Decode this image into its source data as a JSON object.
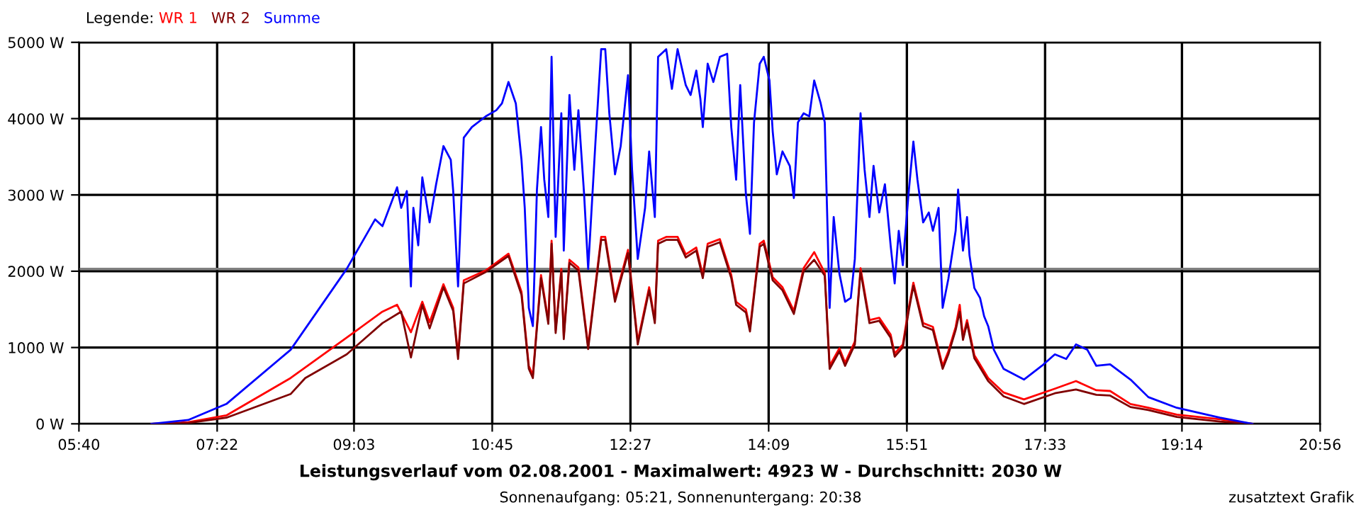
{
  "chart_data": {
    "type": "line",
    "title": "Leistungsverlauf vom 02.08.2001 - Maximalwert: 4923 W - Durchschnitt: 2030 W",
    "subtitle": "Sonnenaufgang: 05:21, Sonnenuntergang: 20:38",
    "legend_title": "Legende:",
    "legend": "top left",
    "grid": true,
    "marker": "none",
    "line_style": "solid",
    "annotations": [
      "zusatztext Grafik"
    ],
    "xlim": [
      5.6667,
      20.9333
    ],
    "xticks": [
      {
        "value": 5.6667,
        "label": "05:40"
      },
      {
        "value": 7.3667,
        "label": "07:22"
      },
      {
        "value": 9.05,
        "label": "09:03"
      },
      {
        "value": 10.75,
        "label": "10:45"
      },
      {
        "value": 12.45,
        "label": "12:27"
      },
      {
        "value": 14.15,
        "label": "14:09"
      },
      {
        "value": 15.85,
        "label": "15:51"
      },
      {
        "value": 17.55,
        "label": "17:33"
      },
      {
        "value": 19.2333,
        "label": "19:14"
      },
      {
        "value": 20.9333,
        "label": "20:56"
      }
    ],
    "ylim": [
      0,
      5000
    ],
    "yticks": [
      {
        "value": 0,
        "label": "0 W"
      },
      {
        "value": 1000,
        "label": "1000 W"
      },
      {
        "value": 2000,
        "label": "2000 W"
      },
      {
        "value": 3000,
        "label": "3000 W"
      },
      {
        "value": 4000,
        "label": "4000 W"
      },
      {
        "value": 5000,
        "label": "5000 W"
      }
    ],
    "ref_lines": [
      {
        "axis": "y",
        "value": 2030,
        "label": null,
        "color": "#808080"
      }
    ],
    "series": [
      {
        "name": "WR 1",
        "color": "#ff0000",
        "x": [
          6.56,
          7.01,
          7.48,
          8.27,
          8.96,
          9.4,
          9.58,
          9.75,
          9.89,
          9.98,
          10.15,
          10.27,
          10.33,
          10.4,
          10.67,
          10.95,
          11.11,
          11.2,
          11.25,
          11.35,
          11.44,
          11.48,
          11.53,
          11.6,
          11.63,
          11.7,
          11.81,
          11.93,
          12.09,
          12.14,
          12.26,
          12.42,
          12.54,
          12.68,
          12.75,
          12.79,
          12.89,
          13.03,
          13.13,
          13.26,
          13.34,
          13.4,
          13.55,
          13.69,
          13.75,
          13.87,
          13.92,
          14.04,
          14.09,
          14.2,
          14.32,
          14.46,
          14.58,
          14.71,
          14.84,
          14.9,
          15.02,
          15.09,
          15.21,
          15.28,
          15.39,
          15.51,
          15.65,
          15.7,
          15.8,
          15.87,
          15.93,
          16.05,
          16.17,
          16.29,
          16.36,
          16.45,
          16.5,
          16.54,
          16.59,
          16.68,
          16.85,
          17.04,
          17.29,
          17.67,
          17.93,
          18.18,
          18.35,
          18.6,
          18.82,
          19.17,
          19.7,
          20.1
        ],
        "values": [
          0,
          20,
          110,
          600,
          1130,
          1470,
          1560,
          1200,
          1600,
          1330,
          1830,
          1520,
          900,
          1880,
          2010,
          2230,
          1730,
          760,
          640,
          1950,
          1350,
          2400,
          1230,
          2030,
          1150,
          2150,
          2050,
          1020,
          2450,
          2450,
          1640,
          2280,
          1080,
          1790,
          1360,
          2400,
          2450,
          2450,
          2220,
          2310,
          1950,
          2360,
          2420,
          1950,
          1600,
          1500,
          1250,
          2360,
          2400,
          1920,
          1790,
          1480,
          2040,
          2250,
          1980,
          760,
          990,
          800,
          1080,
          2040,
          1360,
          1390,
          1170,
          920,
          1040,
          1500,
          1850,
          1320,
          1270,
          760,
          950,
          1270,
          1560,
          1140,
          1360,
          900,
          600,
          410,
          320,
          460,
          560,
          440,
          430,
          260,
          210,
          120,
          60,
          0
        ]
      },
      {
        "name": "WR 2",
        "color": "#800000",
        "x": [
          6.56,
          7.01,
          7.48,
          8.27,
          8.45,
          8.96,
          9.4,
          9.63,
          9.75,
          9.89,
          9.98,
          10.15,
          10.27,
          10.33,
          10.4,
          10.67,
          10.95,
          11.11,
          11.2,
          11.25,
          11.35,
          11.44,
          11.48,
          11.53,
          11.6,
          11.63,
          11.7,
          11.81,
          11.93,
          12.09,
          12.14,
          12.26,
          12.42,
          12.54,
          12.68,
          12.75,
          12.79,
          12.89,
          13.03,
          13.13,
          13.26,
          13.34,
          13.4,
          13.55,
          13.69,
          13.75,
          13.87,
          13.92,
          14.04,
          14.09,
          14.2,
          14.32,
          14.46,
          14.58,
          14.71,
          14.84,
          14.9,
          15.02,
          15.09,
          15.21,
          15.28,
          15.39,
          15.51,
          15.65,
          15.7,
          15.8,
          15.87,
          15.93,
          16.05,
          16.17,
          16.29,
          16.36,
          16.45,
          16.5,
          16.54,
          16.59,
          16.68,
          16.85,
          17.04,
          17.29,
          17.67,
          17.93,
          18.18,
          18.35,
          18.6,
          18.82,
          19.17,
          19.7,
          20.1
        ],
        "values": [
          0,
          10,
          80,
          390,
          600,
          910,
          1320,
          1470,
          870,
          1560,
          1250,
          1790,
          1480,
          850,
          1840,
          1990,
          2200,
          1690,
          720,
          600,
          1910,
          1310,
          2360,
          1190,
          1990,
          1110,
          2110,
          2010,
          980,
          2410,
          2410,
          1600,
          2240,
          1040,
          1750,
          1320,
          2360,
          2410,
          2410,
          2180,
          2270,
          1910,
          2320,
          2380,
          1910,
          1560,
          1460,
          1210,
          2320,
          2360,
          1880,
          1750,
          1440,
          2000,
          2150,
          1940,
          720,
          950,
          760,
          1040,
          2000,
          1320,
          1350,
          1130,
          880,
          1000,
          1460,
          1810,
          1280,
          1230,
          720,
          910,
          1230,
          1470,
          1100,
          1320,
          860,
          560,
          360,
          260,
          400,
          450,
          380,
          370,
          220,
          180,
          90,
          30,
          0
        ]
      },
      {
        "name": "Summe",
        "color": "#0000ff",
        "x": [
          6.56,
          7.01,
          7.48,
          8.27,
          8.96,
          9.31,
          9.4,
          9.58,
          9.63,
          9.7,
          9.75,
          9.78,
          9.84,
          9.89,
          9.98,
          10.06,
          10.15,
          10.24,
          10.27,
          10.33,
          10.4,
          10.5,
          10.67,
          10.8,
          10.87,
          10.95,
          11.04,
          11.11,
          11.15,
          11.2,
          11.25,
          11.3,
          11.35,
          11.39,
          11.44,
          11.48,
          11.53,
          11.6,
          11.63,
          11.7,
          11.76,
          11.81,
          11.88,
          11.93,
          12.02,
          12.09,
          12.14,
          12.19,
          12.26,
          12.33,
          12.42,
          12.47,
          12.54,
          12.63,
          12.68,
          12.75,
          12.79,
          12.89,
          12.96,
          13.03,
          13.13,
          13.19,
          13.26,
          13.31,
          13.34,
          13.4,
          13.47,
          13.55,
          13.64,
          13.69,
          13.75,
          13.8,
          13.87,
          13.92,
          13.97,
          14.04,
          14.09,
          14.16,
          14.2,
          14.25,
          14.32,
          14.41,
          14.46,
          14.51,
          14.58,
          14.65,
          14.71,
          14.79,
          14.84,
          14.9,
          14.95,
          15.02,
          15.09,
          15.16,
          15.21,
          15.28,
          15.33,
          15.39,
          15.44,
          15.51,
          15.58,
          15.65,
          15.7,
          15.75,
          15.8,
          15.87,
          15.93,
          15.98,
          16.05,
          16.12,
          16.17,
          16.24,
          16.29,
          16.36,
          16.45,
          16.48,
          16.54,
          16.59,
          16.62,
          16.68,
          16.75,
          16.8,
          16.85,
          16.92,
          17.04,
          17.29,
          17.51,
          17.67,
          17.81,
          17.93,
          18.07,
          18.18,
          18.35,
          18.6,
          18.82,
          19.17,
          19.7,
          20.1
        ],
        "values": [
          0,
          50,
          260,
          970,
          2030,
          2680,
          2590,
          3100,
          2830,
          3050,
          1800,
          2830,
          2340,
          3230,
          2640,
          3140,
          3640,
          3460,
          3050,
          1800,
          3750,
          3890,
          4030,
          4110,
          4200,
          4480,
          4200,
          3460,
          2830,
          1520,
          1280,
          3070,
          3890,
          3200,
          2710,
          4810,
          2450,
          4070,
          2270,
          4310,
          3330,
          4110,
          3010,
          2030,
          3700,
          4910,
          4910,
          4070,
          3270,
          3640,
          4570,
          3330,
          2160,
          2830,
          3570,
          2710,
          4810,
          4910,
          4390,
          4910,
          4440,
          4310,
          4630,
          4260,
          3890,
          4720,
          4480,
          4810,
          4850,
          3890,
          3200,
          4440,
          3010,
          2490,
          3950,
          4720,
          4810,
          4500,
          3830,
          3270,
          3570,
          3380,
          2960,
          3950,
          4070,
          4030,
          4500,
          4200,
          3950,
          1520,
          2710,
          1970,
          1600,
          1650,
          2160,
          4070,
          3330,
          2710,
          3380,
          2770,
          3140,
          2340,
          1840,
          2530,
          2080,
          3010,
          3700,
          3200,
          2640,
          2770,
          2530,
          2830,
          1520,
          1900,
          2530,
          3070,
          2270,
          2710,
          2210,
          1780,
          1650,
          1410,
          1280,
          970,
          720,
          580,
          760,
          910,
          850,
          1040,
          970,
          760,
          780,
          580,
          350,
          210,
          80,
          0
        ]
      }
    ]
  }
}
